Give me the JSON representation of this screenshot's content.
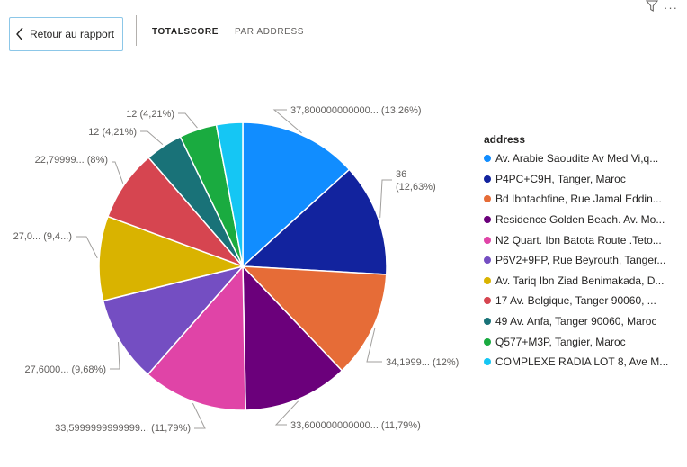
{
  "header": {
    "back_label": "Retour au rapport",
    "tabs": [
      {
        "label": "TOTALSCORE",
        "active": true
      },
      {
        "label": "PAR ADDRESS",
        "active": false
      }
    ],
    "filter_icon": "filter-icon",
    "more_icon": "more-options-icon",
    "more_glyph": "···"
  },
  "chart_data": {
    "type": "pie",
    "legend_title": "address",
    "legend_position": "right",
    "slices": [
      {
        "legend": "Av. Arabie Saoudite Av Med Vi,q...",
        "value": 37.8,
        "data_label": "37,800000000000... (13,26%)",
        "color": "#118DFF"
      },
      {
        "legend": "P4PC+C9H, Tanger, Maroc",
        "value": 36,
        "data_label": "36\n(12,63%)",
        "color": "#12239E"
      },
      {
        "legend": "Bd Ibntachfine, Rue Jamal Eddin...",
        "value": 34.2,
        "data_label": "34,1999... (12%)",
        "color": "#E66C37"
      },
      {
        "legend": "Residence Golden Beach. Av. Mo...",
        "value": 33.6,
        "data_label": "33,600000000000... (11,79%)",
        "color": "#6B007B"
      },
      {
        "legend": "N2 Quart. Ibn Batota Route .Teto...",
        "value": 33.6,
        "data_label": "33,5999999999999... (11,79%)",
        "color": "#E044A7"
      },
      {
        "legend": "P6V2+9FP, Rue Beyrouth, Tanger...",
        "value": 27.6,
        "data_label": "27,6000... (9,68%)",
        "color": "#744EC2"
      },
      {
        "legend": "Av. Tariq Ibn Ziad Benimakada, D...",
        "value": 27.0,
        "data_label": "27,0... (9,4...)",
        "color": "#D9B300"
      },
      {
        "legend": "17 Av. Belgique, Tanger 90060, ...",
        "value": 22.8,
        "data_label": "22,79999... (8%)",
        "color": "#D64550"
      },
      {
        "legend": "49 Av. Anfa, Tanger 90060, Maroc",
        "value": 12,
        "data_label": "12 (4,21%)",
        "color": "#197278"
      },
      {
        "legend": "Q577+M3P, Tangier, Maroc",
        "value": 12,
        "data_label": "12 (4,21%)",
        "color": "#1AAB40"
      },
      {
        "legend": "COMPLEXE RADIA LOT 8, Ave M...",
        "value": 8.4,
        "data_label": "",
        "color": "#15C6F4"
      }
    ]
  }
}
